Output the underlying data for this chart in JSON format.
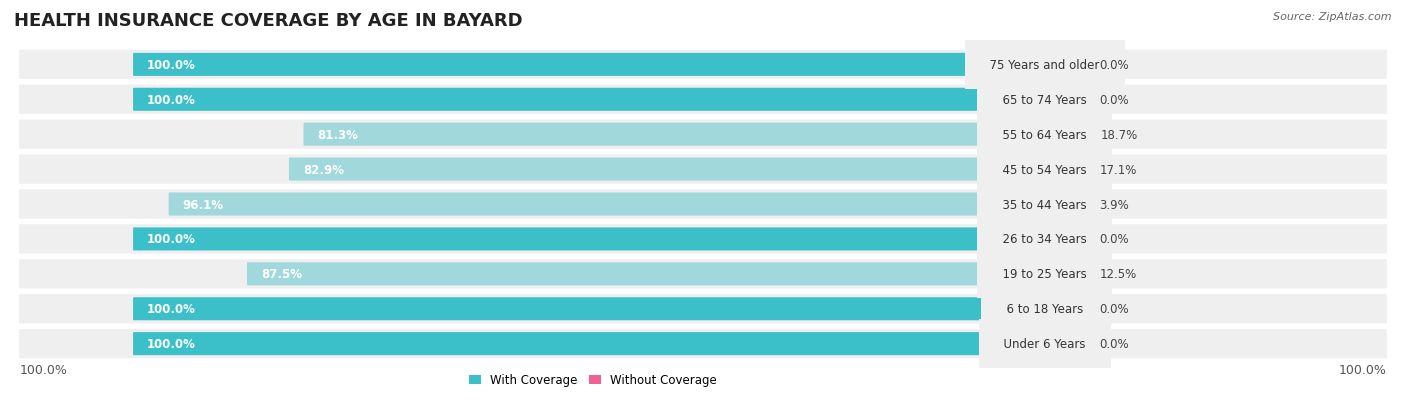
{
  "title": "HEALTH INSURANCE COVERAGE BY AGE IN BAYARD",
  "source_text": "Source: ZipAtlas.com",
  "categories": [
    "Under 6 Years",
    "6 to 18 Years",
    "19 to 25 Years",
    "26 to 34 Years",
    "35 to 44 Years",
    "45 to 54 Years",
    "55 to 64 Years",
    "65 to 74 Years",
    "75 Years and older"
  ],
  "with_coverage": [
    100.0,
    100.0,
    87.5,
    100.0,
    96.1,
    82.9,
    81.3,
    100.0,
    100.0
  ],
  "without_coverage": [
    0.0,
    0.0,
    12.5,
    0.0,
    3.9,
    17.1,
    18.7,
    0.0,
    0.0
  ],
  "color_with_strong": "#3bbfc9",
  "color_with_light": "#a0d8dc",
  "color_without_strong": "#f06292",
  "color_without_light": "#f4a7c0",
  "color_without_pale": "#f8d0e0",
  "row_bg": "#efefef",
  "bg_color": "#ffffff",
  "axis_label_left": "100.0%",
  "axis_label_right": "100.0%",
  "legend_with": "With Coverage",
  "legend_without": "Without Coverage",
  "title_fontsize": 13,
  "label_fontsize": 8.5,
  "tick_fontsize": 9,
  "source_fontsize": 8
}
